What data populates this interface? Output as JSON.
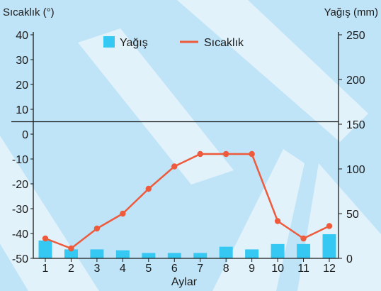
{
  "chart_data": {
    "type": "bar+line",
    "left_axis_title": "Sıcaklık (°)",
    "right_axis_title": "Yağış (mm)",
    "xlabel": "Aylar",
    "categories": [
      "1",
      "2",
      "3",
      "4",
      "5",
      "6",
      "7",
      "8",
      "9",
      "10",
      "11",
      "12"
    ],
    "left_ticks": [
      "40",
      "30",
      "20",
      "10",
      "0",
      "-10",
      "-20",
      "-30",
      "-40",
      "-50"
    ],
    "right_ticks": [
      "250",
      "200",
      "150",
      "100",
      "50",
      "0"
    ],
    "left_range": [
      -50,
      40
    ],
    "right_range": [
      0,
      250
    ],
    "series": [
      {
        "name": "Yağış",
        "type": "bar",
        "axis": "right",
        "color": "#35c8f2",
        "values": [
          20,
          10,
          10,
          9,
          6,
          6,
          6,
          13,
          10,
          16,
          16,
          27
        ]
      },
      {
        "name": "Sıcaklık",
        "type": "line",
        "axis": "left",
        "color": "#ee5a3c",
        "values": [
          -42,
          -46,
          -38,
          -32,
          -22,
          -13,
          -8,
          -8,
          -8,
          -35,
          -42,
          -37
        ]
      }
    ],
    "legend": "top-center",
    "reference_line_left": 5
  }
}
